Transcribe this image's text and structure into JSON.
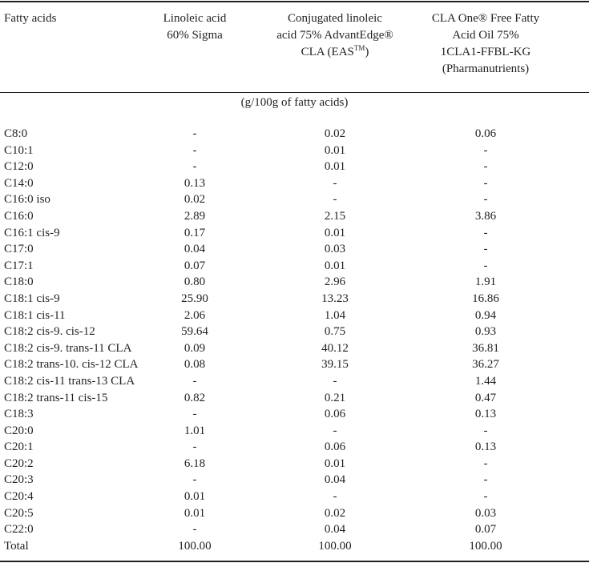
{
  "table": {
    "headers": {
      "name": "Fatty acids",
      "col1": [
        "Linoleic acid",
        "60% Sigma"
      ],
      "col2": [
        "Conjugated linoleic",
        "acid 75% AdvantEdge®",
        "CLA (EAS",
        "TM",
        ")"
      ],
      "col3": [
        "CLA One® Free Fatty",
        "Acid Oil 75%",
        "1CLA1-FFBL-KG",
        "(Pharmanutrients)"
      ]
    },
    "unit": "(g/100g of fatty acids)",
    "rows": [
      {
        "name": "C8:0",
        "v1": "-",
        "v2": "0.02",
        "v3": "0.06"
      },
      {
        "name": "C10:1",
        "v1": "-",
        "v2": "0.01",
        "v3": "-"
      },
      {
        "name": "C12:0",
        "v1": "-",
        "v2": "0.01",
        "v3": "-"
      },
      {
        "name": "C14:0",
        "v1": "0.13",
        "v2": "-",
        "v3": "-"
      },
      {
        "name": "C16:0 iso",
        "v1": "0.02",
        "v2": "-",
        "v3": "-"
      },
      {
        "name": "C16:0",
        "v1": "2.89",
        "v2": "2.15",
        "v3": "3.86"
      },
      {
        "name": "C16:1 cis-9",
        "v1": "0.17",
        "v2": "0.01",
        "v3": "-"
      },
      {
        "name": "C17:0",
        "v1": "0.04",
        "v2": "0.03",
        "v3": "-"
      },
      {
        "name": "C17:1",
        "v1": "0.07",
        "v2": "0.01",
        "v3": "-"
      },
      {
        "name": "C18:0",
        "v1": "0.80",
        "v2": "2.96",
        "v3": "1.91"
      },
      {
        "name": "C18:1 cis-9",
        "v1": "25.90",
        "v2": "13.23",
        "v3": "16.86"
      },
      {
        "name": "C18:1 cis-11",
        "v1": "2.06",
        "v2": "1.04",
        "v3": "0.94"
      },
      {
        "name": "C18:2 cis-9. cis-12",
        "v1": "59.64",
        "v2": "0.75",
        "v3": "0.93"
      },
      {
        "name": "C18:2 cis-9. trans-11 CLA",
        "v1": "0.09",
        "v2": "40.12",
        "v3": "36.81"
      },
      {
        "name": "C18:2 trans-10. cis-12 CLA",
        "v1": "0.08",
        "v2": "39.15",
        "v3": "36.27"
      },
      {
        "name": "C18:2 cis-11 trans-13 CLA",
        "v1": "-",
        "v2": "-",
        "v3": "1.44"
      },
      {
        "name": "C18:2 trans-11 cis-15",
        "v1": "0.82",
        "v2": "0.21",
        "v3": "0.47"
      },
      {
        "name": "C18:3",
        "v1": "-",
        "v2": "0.06",
        "v3": "0.13"
      },
      {
        "name": "C20:0",
        "v1": "1.01",
        "v2": "-",
        "v3": "-"
      },
      {
        "name": "C20:1",
        "v1": "-",
        "v2": "0.06",
        "v3": "0.13"
      },
      {
        "name": "C20:2",
        "v1": "6.18",
        "v2": "0.01",
        "v3": "-"
      },
      {
        "name": "C20:3",
        "v1": "-",
        "v2": "0.04",
        "v3": "-"
      },
      {
        "name": "C20:4",
        "v1": "0.01",
        "v2": "-",
        "v3": "-"
      },
      {
        "name": "C20:5",
        "v1": "0.01",
        "v2": "0.02",
        "v3": "0.03"
      },
      {
        "name": "C22:0",
        "v1": "-",
        "v2": "0.04",
        "v3": "0.07"
      },
      {
        "name": "Total",
        "v1": "100.00",
        "v2": "100.00",
        "v3": "100.00"
      }
    ]
  }
}
